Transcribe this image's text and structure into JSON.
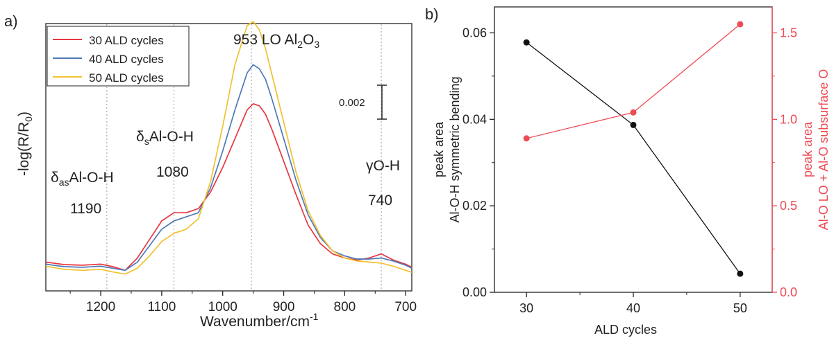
{
  "panels": {
    "a_label": "a)",
    "b_label": "b)"
  },
  "colors": {
    "axis": "#222222",
    "red": "#e8363f",
    "blue": "#4f79b5",
    "yellow": "#f2c12e",
    "black_series": "#111111",
    "red_series": "#ef4b55",
    "guide": "#9a9a9a"
  },
  "chart_data": [
    {
      "type": "line",
      "xlabel_main": "Wavenumber/cm",
      "xlabel_sup": "-1",
      "ylabel_main": "-log(R/R",
      "ylabel_sub": "0",
      "ylabel_end": ")",
      "xlim": [
        1290,
        690
      ],
      "x_reversed": true,
      "xticks": [
        1200,
        1100,
        1000,
        900,
        800,
        700
      ],
      "ylim": [
        -0.001,
        0.012
      ],
      "yticks_shown": false,
      "legend": {
        "placement": "top-left",
        "entries": [
          "30 ALD cycles",
          "40 ALD cycles",
          "50 ALD cycles"
        ]
      },
      "reference_lines": [
        1190,
        1080,
        953,
        740
      ],
      "scale_bar": {
        "label": "0.002",
        "value": 0.002
      },
      "annotations": {
        "peak953_pre": "953  LO Al",
        "peak953_sub": "2",
        "peak953_mid": "O",
        "peak953_sub2": "3",
        "s_symbol": "δ",
        "s_sub": "s",
        "s_rest": "Al-O-H",
        "s_num": "1080",
        "as_symbol": "δ",
        "as_sub": "as",
        "as_rest": "Al-O-H",
        "as_num": "1190",
        "g_label": "γO-H",
        "g_num": "740"
      },
      "series": [
        {
          "name": "30 ALD cycles",
          "points": [
            [
              1290,
              0.0004
            ],
            [
              1260,
              0.00028
            ],
            [
              1230,
              0.00025
            ],
            [
              1200,
              0.0003
            ],
            [
              1180,
              0.00018
            ],
            [
              1160,
              0.0
            ],
            [
              1140,
              0.0006
            ],
            [
              1120,
              0.0015
            ],
            [
              1100,
              0.0024
            ],
            [
              1080,
              0.0028
            ],
            [
              1060,
              0.0028
            ],
            [
              1040,
              0.003
            ],
            [
              1020,
              0.0038
            ],
            [
              1000,
              0.005
            ],
            [
              980,
              0.0064
            ],
            [
              960,
              0.0078
            ],
            [
              950,
              0.0081
            ],
            [
              940,
              0.008
            ],
            [
              930,
              0.0076
            ],
            [
              920,
              0.0069
            ],
            [
              900,
              0.0053
            ],
            [
              880,
              0.0037
            ],
            [
              860,
              0.0022
            ],
            [
              840,
              0.0013
            ],
            [
              820,
              0.0008
            ],
            [
              800,
              0.0006
            ],
            [
              780,
              0.0005
            ],
            [
              760,
              0.0006
            ],
            [
              740,
              0.0008
            ],
            [
              720,
              0.0005
            ],
            [
              700,
              0.0003
            ],
            [
              690,
              0.00015
            ]
          ]
        },
        {
          "name": "40 ALD cycles",
          "points": [
            [
              1290,
              0.0003
            ],
            [
              1260,
              0.00018
            ],
            [
              1230,
              0.00015
            ],
            [
              1200,
              0.0002
            ],
            [
              1180,
              0.0001
            ],
            [
              1160,
              0.0
            ],
            [
              1140,
              0.0004
            ],
            [
              1120,
              0.0012
            ],
            [
              1100,
              0.002
            ],
            [
              1080,
              0.0024
            ],
            [
              1060,
              0.0026
            ],
            [
              1040,
              0.0028
            ],
            [
              1020,
              0.004
            ],
            [
              1000,
              0.0058
            ],
            [
              980,
              0.0078
            ],
            [
              960,
              0.0096
            ],
            [
              950,
              0.01
            ],
            [
              940,
              0.0098
            ],
            [
              930,
              0.0093
            ],
            [
              920,
              0.0084
            ],
            [
              900,
              0.0064
            ],
            [
              880,
              0.0044
            ],
            [
              860,
              0.0027
            ],
            [
              840,
              0.0016
            ],
            [
              820,
              0.00095
            ],
            [
              800,
              0.0007
            ],
            [
              780,
              0.00055
            ],
            [
              760,
              0.00055
            ],
            [
              740,
              0.0006
            ],
            [
              720,
              0.00045
            ],
            [
              700,
              0.00025
            ],
            [
              690,
              0.0001
            ]
          ]
        },
        {
          "name": "50 ALD cycles",
          "points": [
            [
              1290,
              0.0002
            ],
            [
              1260,
              5e-05
            ],
            [
              1230,
              0.0
            ],
            [
              1200,
              5e-05
            ],
            [
              1180,
              -8e-05
            ],
            [
              1160,
              -0.00018
            ],
            [
              1140,
              0.0001
            ],
            [
              1120,
              0.0007
            ],
            [
              1100,
              0.0014
            ],
            [
              1080,
              0.0018
            ],
            [
              1060,
              0.002
            ],
            [
              1040,
              0.0025
            ],
            [
              1020,
              0.0043
            ],
            [
              1000,
              0.007
            ],
            [
              980,
              0.01
            ],
            [
              960,
              0.0119
            ],
            [
              950,
              0.0121
            ],
            [
              940,
              0.0117
            ],
            [
              930,
              0.0108
            ],
            [
              920,
              0.0096
            ],
            [
              900,
              0.0072
            ],
            [
              880,
              0.0048
            ],
            [
              860,
              0.0029
            ],
            [
              840,
              0.0017
            ],
            [
              820,
              0.00095
            ],
            [
              800,
              0.0006
            ],
            [
              780,
              0.00045
            ],
            [
              760,
              0.0004
            ],
            [
              740,
              0.00035
            ],
            [
              720,
              0.0002
            ],
            [
              700,
              0.0
            ],
            [
              690,
              -0.0001
            ]
          ]
        }
      ]
    },
    {
      "type": "line",
      "xlabel": "ALD cycles",
      "xticks": [
        30,
        40,
        50
      ],
      "xlim": [
        27,
        53
      ],
      "ylabel_left_line1": "peak area",
      "ylabel_left_line2": "Al-O-H symmetric bending",
      "ylim_left": [
        0,
        0.066
      ],
      "yticks_left": [
        "0.00",
        "0.02",
        "0.04",
        "0.06"
      ],
      "ylabel_right_line1": "peak area",
      "ylabel_right_line2": "Al-O LO + Al-O subsurface O",
      "ylim_right": [
        0,
        1.65
      ],
      "yticks_right": [
        "0.0",
        "0.5",
        "1.0",
        "1.5"
      ],
      "series": [
        {
          "axis": "left",
          "color": "#111111",
          "x": [
            30,
            40,
            50
          ],
          "y": [
            0.0578,
            0.0387,
            0.0043
          ]
        },
        {
          "axis": "right",
          "color": "#ef4b55",
          "x": [
            30,
            40,
            50
          ],
          "y": [
            0.89,
            1.04,
            1.55
          ]
        }
      ]
    }
  ]
}
